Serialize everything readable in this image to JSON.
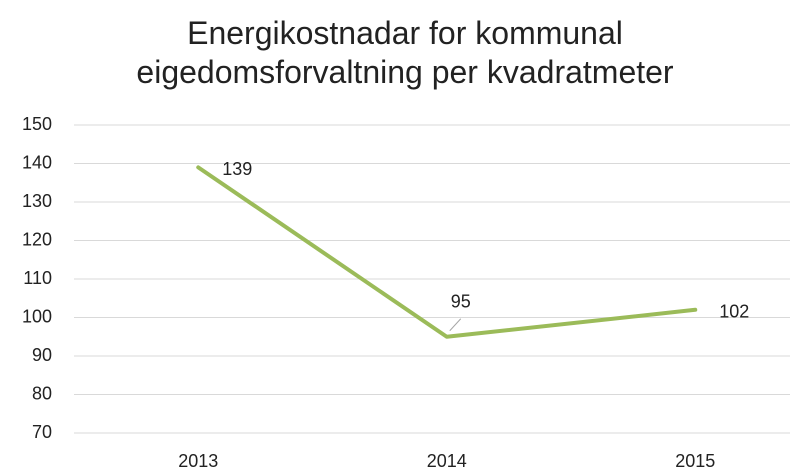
{
  "chart_data": {
    "type": "line",
    "title": "Energikostnadar for kommunal eigedomsforvaltning per kvadratmeter",
    "categories": [
      "2013",
      "2014",
      "2015"
    ],
    "values": [
      139,
      95,
      102
    ],
    "color": "#9bbb59",
    "ylim": [
      70,
      150
    ],
    "yticks": [
      70,
      80,
      90,
      100,
      110,
      120,
      130,
      140,
      150
    ],
    "grid": true
  }
}
